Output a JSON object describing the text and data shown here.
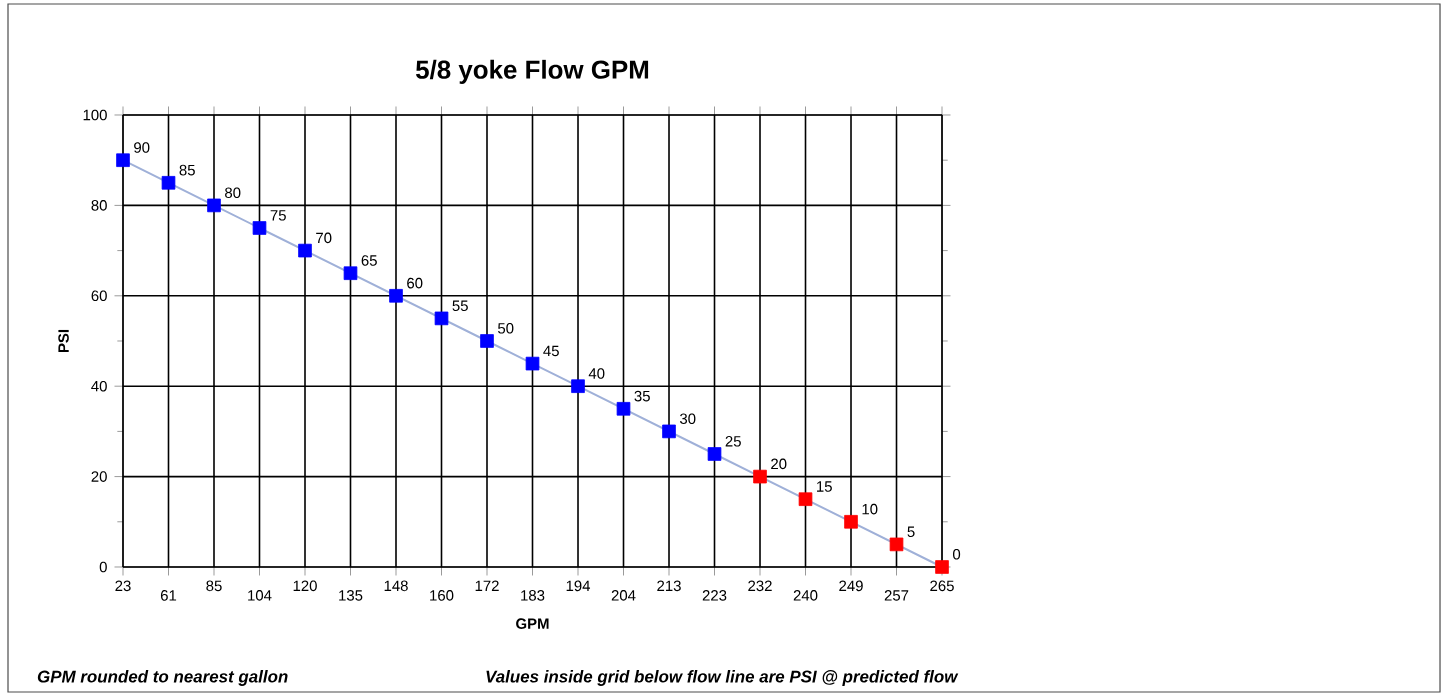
{
  "chart_data": {
    "type": "line",
    "title": "5/8 yoke  Flow GPM",
    "xlabel": "GPM",
    "ylabel": "PSI",
    "categories": [
      "23",
      "61",
      "85",
      "104",
      "120",
      "135",
      "148",
      "160",
      "172",
      "183",
      "194",
      "204",
      "213",
      "223",
      "232",
      "240",
      "249",
      "257",
      "265"
    ],
    "series": [
      {
        "color": "#9fb0d8",
        "values": [
          90,
          85,
          80,
          75,
          70,
          65,
          60,
          55,
          50,
          45,
          40,
          35,
          30,
          25,
          20,
          15,
          10,
          5,
          0
        ],
        "colors": [
          "#0000ff",
          "#0000ff",
          "#0000ff",
          "#0000ff",
          "#0000ff",
          "#0000ff",
          "#0000ff",
          "#0000ff",
          "#0000ff",
          "#0000ff",
          "#0000ff",
          "#0000ff",
          "#0000ff",
          "#0000ff",
          "#ff0000",
          "#ff0000",
          "#ff0000",
          "#ff0000",
          "#ff0000"
        ]
      }
    ],
    "ylim": [
      0,
      100
    ],
    "yticks": [
      0,
      20,
      40,
      60,
      80,
      100
    ],
    "grid": true,
    "marker": "square",
    "data_labels": true,
    "annotations": [
      "GPM rounded to nearest gallon",
      "Values inside grid below flow line are PSI @ predicted flow"
    ]
  }
}
